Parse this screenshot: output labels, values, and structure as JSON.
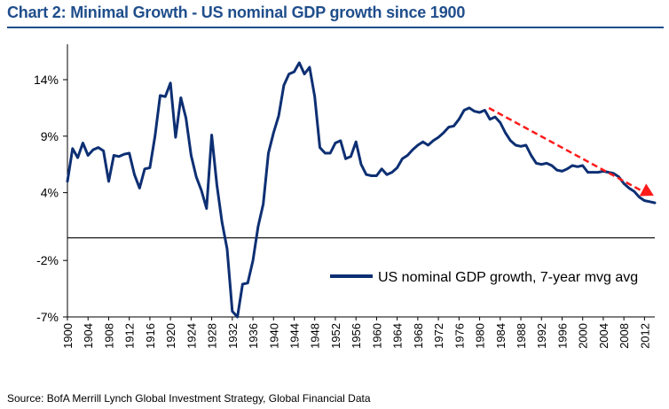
{
  "title": "Chart 2: Minimal Growth - US nominal GDP growth since 1900",
  "source": "Source: BofA Merrill Lynch Global Investment Strategy, Global Financial Data",
  "colors": {
    "title": "#1f4e8c",
    "series": "#0d2f73",
    "trend_arrow": "#ff1a1a"
  },
  "chart_data": {
    "type": "line",
    "title": "Chart 2: Minimal Growth - US nominal GDP growth since 1900",
    "xlabel": "",
    "ylabel": "",
    "xlim": [
      1900,
      2014
    ],
    "ylim": [
      -7,
      17
    ],
    "y_ticks": [
      -7,
      -2,
      4,
      9,
      14
    ],
    "y_tick_labels": [
      "-7%",
      "-2%",
      "4%",
      "9%",
      "14%"
    ],
    "x_ticks": [
      1900,
      1904,
      1908,
      1912,
      1916,
      1920,
      1924,
      1928,
      1932,
      1936,
      1940,
      1944,
      1948,
      1952,
      1956,
      1960,
      1964,
      1968,
      1972,
      1976,
      1980,
      1984,
      1988,
      1992,
      1996,
      2000,
      2004,
      2008,
      2012
    ],
    "grid": false,
    "legend_position": "lower-right",
    "annotations": [
      "red dashed downward trend arrow from 1981 to 2014"
    ],
    "series": [
      {
        "name": "US nominal GDP growth, 7-year mvg avg",
        "x": [
          1900,
          1901,
          1902,
          1903,
          1904,
          1905,
          1906,
          1907,
          1908,
          1909,
          1910,
          1911,
          1912,
          1913,
          1914,
          1915,
          1916,
          1917,
          1918,
          1919,
          1920,
          1921,
          1922,
          1923,
          1924,
          1925,
          1926,
          1927,
          1928,
          1929,
          1930,
          1931,
          1932,
          1933,
          1934,
          1935,
          1936,
          1937,
          1938,
          1939,
          1940,
          1941,
          1942,
          1943,
          1944,
          1945,
          1946,
          1947,
          1948,
          1949,
          1950,
          1951,
          1952,
          1953,
          1954,
          1955,
          1956,
          1957,
          1958,
          1959,
          1960,
          1961,
          1962,
          1963,
          1964,
          1965,
          1966,
          1967,
          1968,
          1969,
          1970,
          1971,
          1972,
          1973,
          1974,
          1975,
          1976,
          1977,
          1978,
          1979,
          1980,
          1981,
          1982,
          1983,
          1984,
          1985,
          1986,
          1987,
          1988,
          1989,
          1990,
          1991,
          1992,
          1993,
          1994,
          1995,
          1996,
          1997,
          1998,
          1999,
          2000,
          2001,
          2002,
          2003,
          2004,
          2005,
          2006,
          2007,
          2008,
          2009,
          2010,
          2011,
          2012,
          2013,
          2014
        ],
        "values": [
          5.0,
          7.9,
          7.1,
          8.4,
          7.3,
          7.8,
          8.0,
          7.7,
          5.0,
          7.3,
          7.2,
          7.4,
          7.5,
          5.6,
          4.4,
          6.1,
          6.2,
          9.0,
          12.6,
          12.5,
          13.7,
          8.9,
          12.4,
          10.6,
          7.3,
          5.4,
          4.2,
          2.6,
          9.1,
          4.7,
          1.4,
          -1.0,
          -6.5,
          -7.0,
          -4.1,
          -4.0,
          -2.0,
          1.0,
          3.0,
          7.5,
          9.3,
          10.8,
          13.5,
          14.5,
          14.7,
          15.5,
          14.5,
          15.1,
          12.5,
          8.0,
          7.5,
          7.5,
          8.4,
          8.6,
          7.0,
          7.2,
          8.5,
          6.5,
          5.6,
          5.5,
          5.5,
          6.1,
          5.6,
          5.8,
          6.2,
          7.0,
          7.3,
          7.8,
          8.2,
          8.5,
          8.2,
          8.6,
          8.9,
          9.3,
          9.8,
          9.9,
          10.5,
          11.3,
          11.5,
          11.2,
          11.1,
          11.3,
          10.5,
          10.7,
          10.2,
          9.3,
          8.6,
          8.2,
          8.1,
          8.2,
          7.3,
          6.6,
          6.5,
          6.6,
          6.4,
          6.0,
          5.9,
          6.1,
          6.4,
          6.3,
          6.4,
          5.8,
          5.8,
          5.8,
          5.9,
          5.8,
          5.7,
          5.4,
          4.8,
          4.4,
          4.1,
          3.6,
          3.3,
          3.2,
          3.1
        ]
      }
    ]
  }
}
